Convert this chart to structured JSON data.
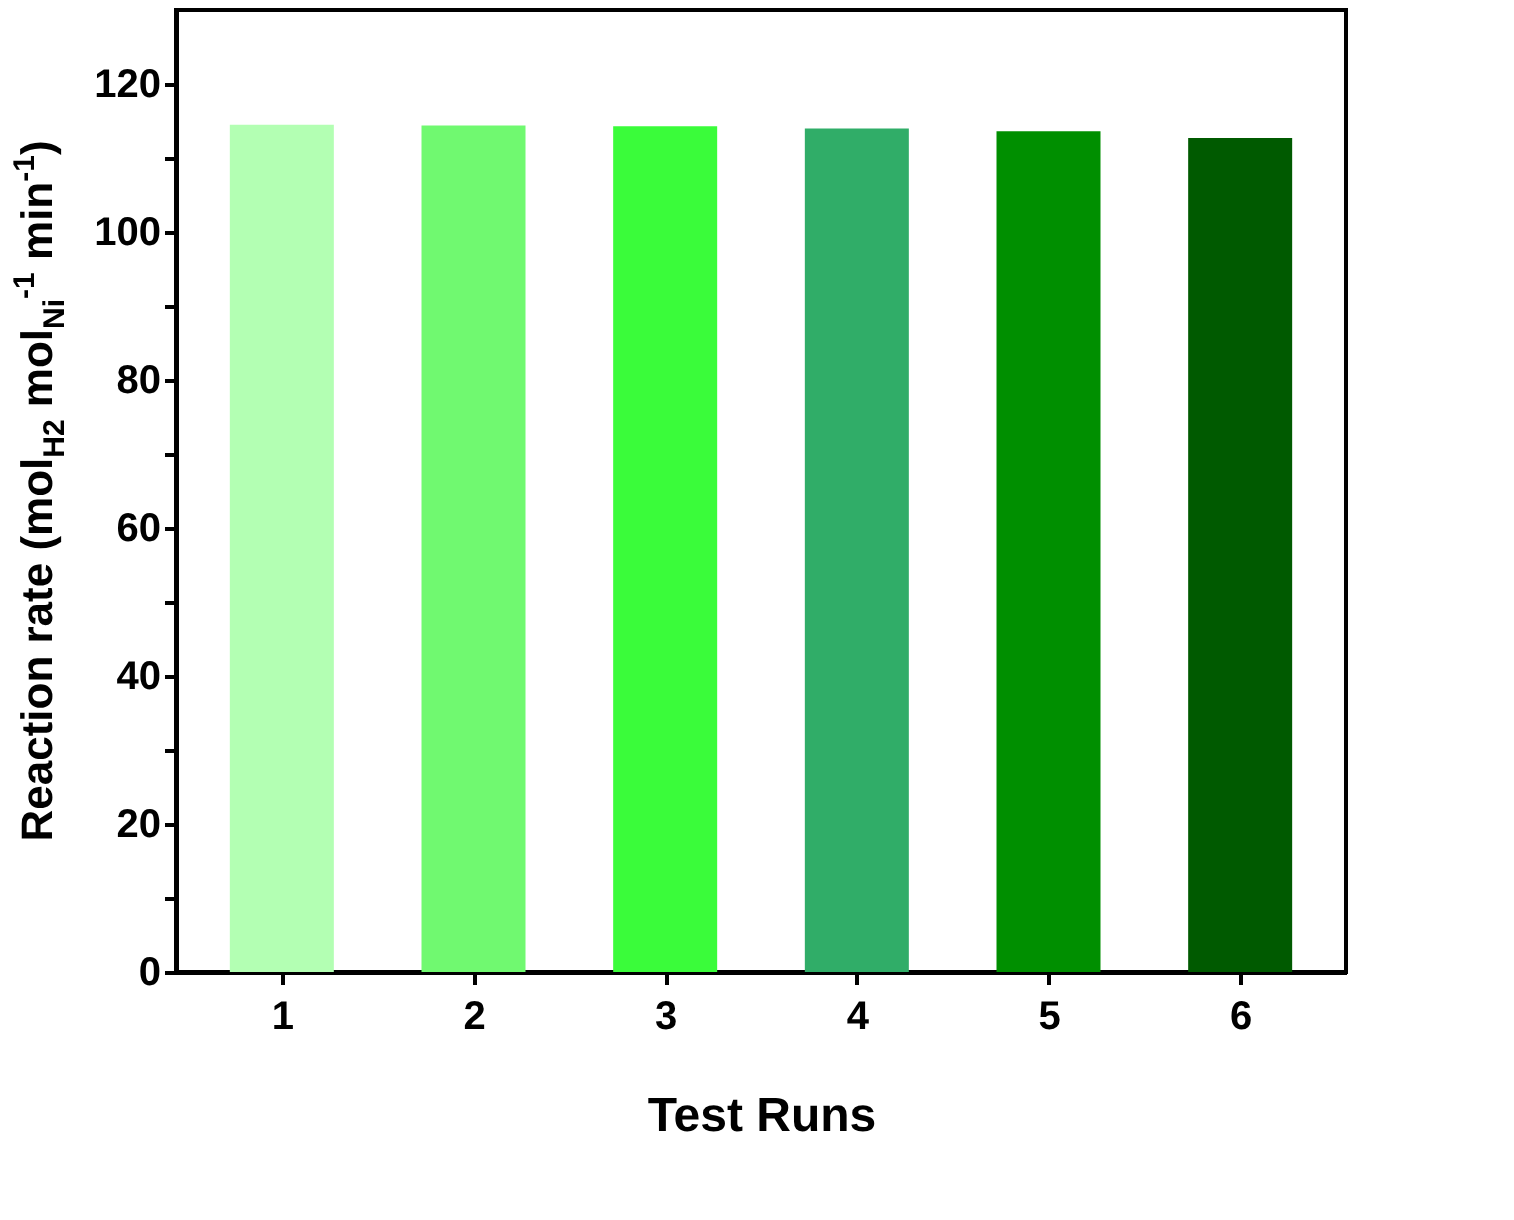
{
  "chart_data": {
    "type": "bar",
    "xlabel": "Test Runs",
    "ylabel": "Reaction rate (mol$_{H2}$ mol$_{Ni}$$^{-1}$ min$^{-1}$)",
    "categories": [
      "1",
      "2",
      "3",
      "4",
      "5",
      "6"
    ],
    "values": [
      114.5,
      114.4,
      114.3,
      114.0,
      113.6,
      112.7
    ],
    "colors": [
      "#b3ffb3",
      "#70f970",
      "#3afc3a",
      "#30ad68",
      "#008f00",
      "#005a00"
    ],
    "ylim": [
      0,
      130
    ],
    "yticks": [
      0,
      {
        "value": 10,
        "label": null
      },
      20,
      {
        "value": 30,
        "label": null
      },
      40,
      {
        "value": 50,
        "label": null
      },
      60,
      {
        "value": 70,
        "label": null
      },
      80,
      {
        "value": 90,
        "label": null
      },
      100,
      {
        "value": 110,
        "label": null
      },
      120
    ],
    "grid": false,
    "legend": false
  }
}
